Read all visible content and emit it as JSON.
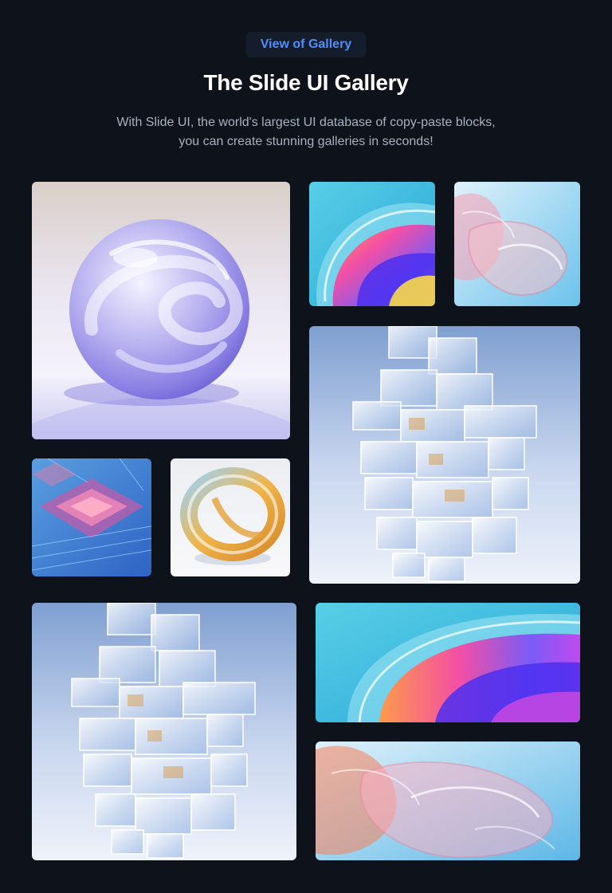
{
  "header": {
    "badge_label": "View of Gallery",
    "title": "The Slide UI Gallery",
    "subtitle_line1": "With Slide UI, the world's largest UI database of copy-paste blocks,",
    "subtitle_line2": "you can create stunning galleries in seconds!"
  },
  "gallery": {
    "images": [
      {
        "name": "glass-sphere-image"
      },
      {
        "name": "iridescent-wave-image"
      },
      {
        "name": "glass-sheets-image"
      },
      {
        "name": "glass-cube-tower-image"
      },
      {
        "name": "circuit-chip-image"
      },
      {
        "name": "glass-ring-image"
      },
      {
        "name": "glass-cube-tower-large-image"
      },
      {
        "name": "iridescent-wave-wide-image"
      },
      {
        "name": "glass-sheets-wide-image"
      }
    ]
  },
  "colors": {
    "background": "#0d121b",
    "accent": "#4f8ff7",
    "badge_bg": "#151d2c",
    "subtitle": "#a9b0bf"
  }
}
